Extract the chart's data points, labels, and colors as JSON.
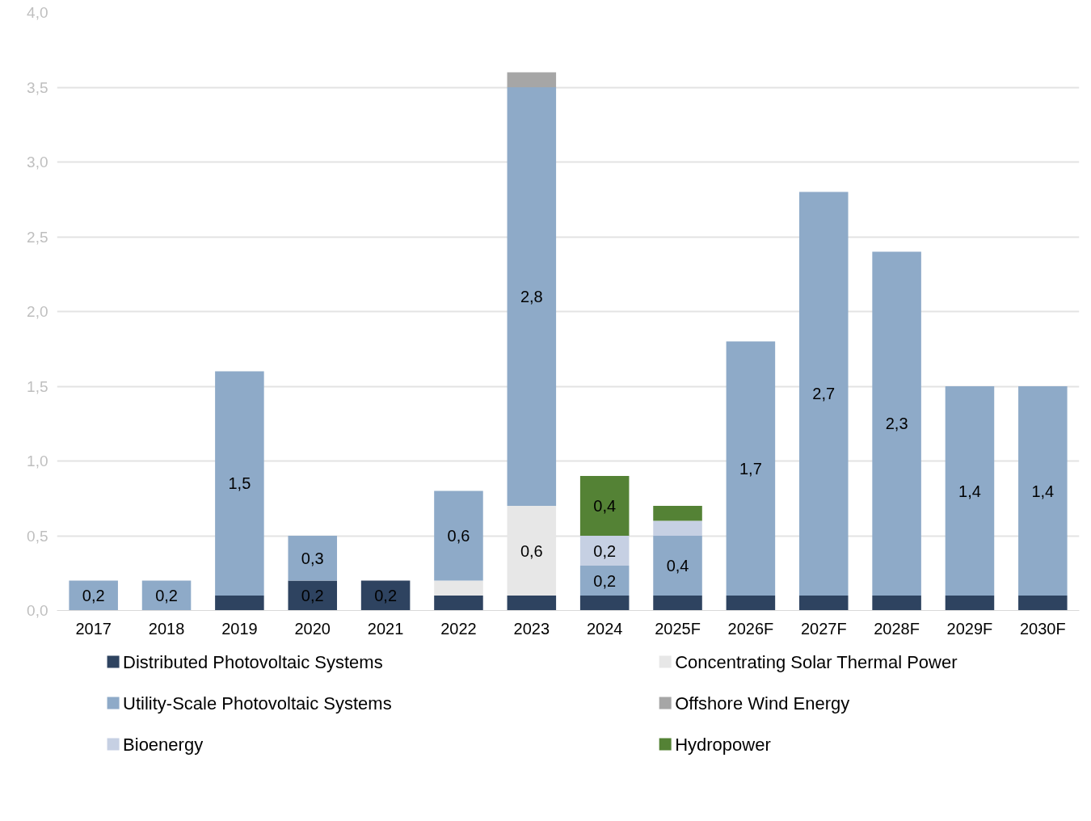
{
  "chart_data": {
    "type": "bar",
    "stacked": true,
    "categories": [
      "2017",
      "2018",
      "2019",
      "2020",
      "2021",
      "2022",
      "2023",
      "2024",
      "2025F",
      "2026F",
      "2027F",
      "2028F",
      "2029F",
      "2030F"
    ],
    "series": [
      {
        "name": "Distributed Photovoltaic Systems",
        "color": "#2e4360",
        "values": [
          null,
          null,
          0.1,
          0.2,
          0.2,
          0.1,
          0.1,
          0.1,
          0.1,
          0.1,
          0.1,
          0.1,
          0.1,
          0.1
        ],
        "value_labels": [
          null,
          null,
          null,
          "0,2",
          "0,2",
          null,
          null,
          null,
          null,
          null,
          null,
          null,
          null,
          null
        ]
      },
      {
        "name": "Concentrating Solar Thermal Power",
        "color": "#e7e7e7",
        "values": [
          null,
          null,
          null,
          null,
          null,
          0.1,
          0.6,
          null,
          null,
          null,
          null,
          null,
          null,
          null
        ],
        "value_labels": [
          null,
          null,
          null,
          null,
          null,
          null,
          "0,6",
          null,
          null,
          null,
          null,
          null,
          null,
          null
        ]
      },
      {
        "name": "Utility-Scale Photovoltaic Systems",
        "color": "#8eaac8",
        "values": [
          0.2,
          0.2,
          1.5,
          0.3,
          null,
          0.6,
          2.8,
          0.2,
          0.4,
          1.7,
          2.7,
          2.3,
          1.4,
          1.4
        ],
        "value_labels": [
          "0,2",
          "0,2",
          "1,5",
          "0,3",
          null,
          "0,6",
          "2,8",
          "0,2",
          "0,4",
          "1,7",
          "2,7",
          "2,3",
          "1,4",
          "1,4"
        ]
      },
      {
        "name": "Offshore Wind Energy",
        "color": "#a6a6a6",
        "values": [
          null,
          null,
          null,
          null,
          null,
          null,
          0.1,
          null,
          null,
          null,
          null,
          null,
          null,
          null
        ],
        "value_labels": [
          null,
          null,
          null,
          null,
          null,
          null,
          null,
          null,
          null,
          null,
          null,
          null,
          null,
          null
        ]
      },
      {
        "name": "Bioenergy",
        "color": "#c6d0e3",
        "values": [
          null,
          null,
          null,
          null,
          null,
          null,
          null,
          0.2,
          0.1,
          null,
          null,
          null,
          null,
          null
        ],
        "value_labels": [
          null,
          null,
          null,
          null,
          null,
          null,
          null,
          "0,2",
          null,
          null,
          null,
          null,
          null,
          null
        ]
      },
      {
        "name": "Hydropower",
        "color": "#548235",
        "values": [
          null,
          null,
          null,
          null,
          null,
          null,
          null,
          0.4,
          0.1,
          null,
          null,
          null,
          null,
          null
        ],
        "value_labels": [
          null,
          null,
          null,
          null,
          null,
          null,
          null,
          "0,4",
          null,
          null,
          null,
          null,
          null,
          null
        ]
      }
    ],
    "ylim": [
      0,
      4
    ],
    "yticks": [
      {
        "value": 0,
        "label": "0,0"
      },
      {
        "value": 0.5,
        "label": "0,5"
      },
      {
        "value": 1,
        "label": "1,0"
      },
      {
        "value": 1.5,
        "label": "1,5"
      },
      {
        "value": 2,
        "label": "2,0"
      },
      {
        "value": 2.5,
        "label": "2,5"
      },
      {
        "value": 3,
        "label": "3,0"
      },
      {
        "value": 3.5,
        "label": "3,5"
      },
      {
        "value": 4,
        "label": "4,0"
      }
    ],
    "grid": "y",
    "legend": "bottom"
  }
}
